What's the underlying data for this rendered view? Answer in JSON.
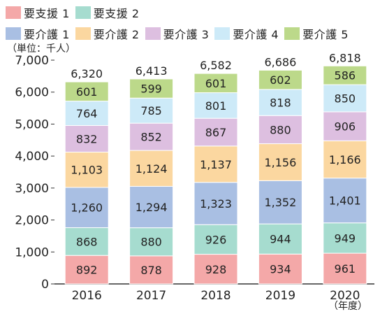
{
  "chart_data": {
    "type": "bar",
    "stacked": true,
    "categories": [
      "2016",
      "2017",
      "2018",
      "2019",
      "2020"
    ],
    "series": [
      {
        "name": "要支援 1",
        "color": "#f4a8a8",
        "values": [
          892,
          878,
          928,
          934,
          961
        ]
      },
      {
        "name": "要支援 2",
        "color": "#a6dccf",
        "values": [
          868,
          880,
          926,
          944,
          949
        ]
      },
      {
        "name": "要介護 1",
        "color": "#a9bfe3",
        "values": [
          1260,
          1294,
          1323,
          1352,
          1401
        ]
      },
      {
        "name": "要介護 2",
        "color": "#fbd7a0",
        "values": [
          1103,
          1124,
          1137,
          1156,
          1166
        ]
      },
      {
        "name": "要介護 3",
        "color": "#ddbfe0",
        "values": [
          832,
          852,
          867,
          880,
          906
        ]
      },
      {
        "name": "要介護 4",
        "color": "#cdeaf8",
        "values": [
          764,
          785,
          801,
          818,
          850
        ]
      },
      {
        "name": "要介護 5",
        "color": "#bcd98a",
        "values": [
          601,
          599,
          601,
          602,
          586
        ]
      }
    ],
    "totals": [
      6320,
      6413,
      6582,
      6686,
      6818
    ],
    "ylabel": "（単位：千人）",
    "xlabel": "（年度）",
    "ylim": [
      0,
      7000
    ],
    "yticks": [
      0,
      1000,
      2000,
      3000,
      4000,
      5000,
      6000,
      7000
    ],
    "grid": false,
    "legend_position": "top"
  }
}
